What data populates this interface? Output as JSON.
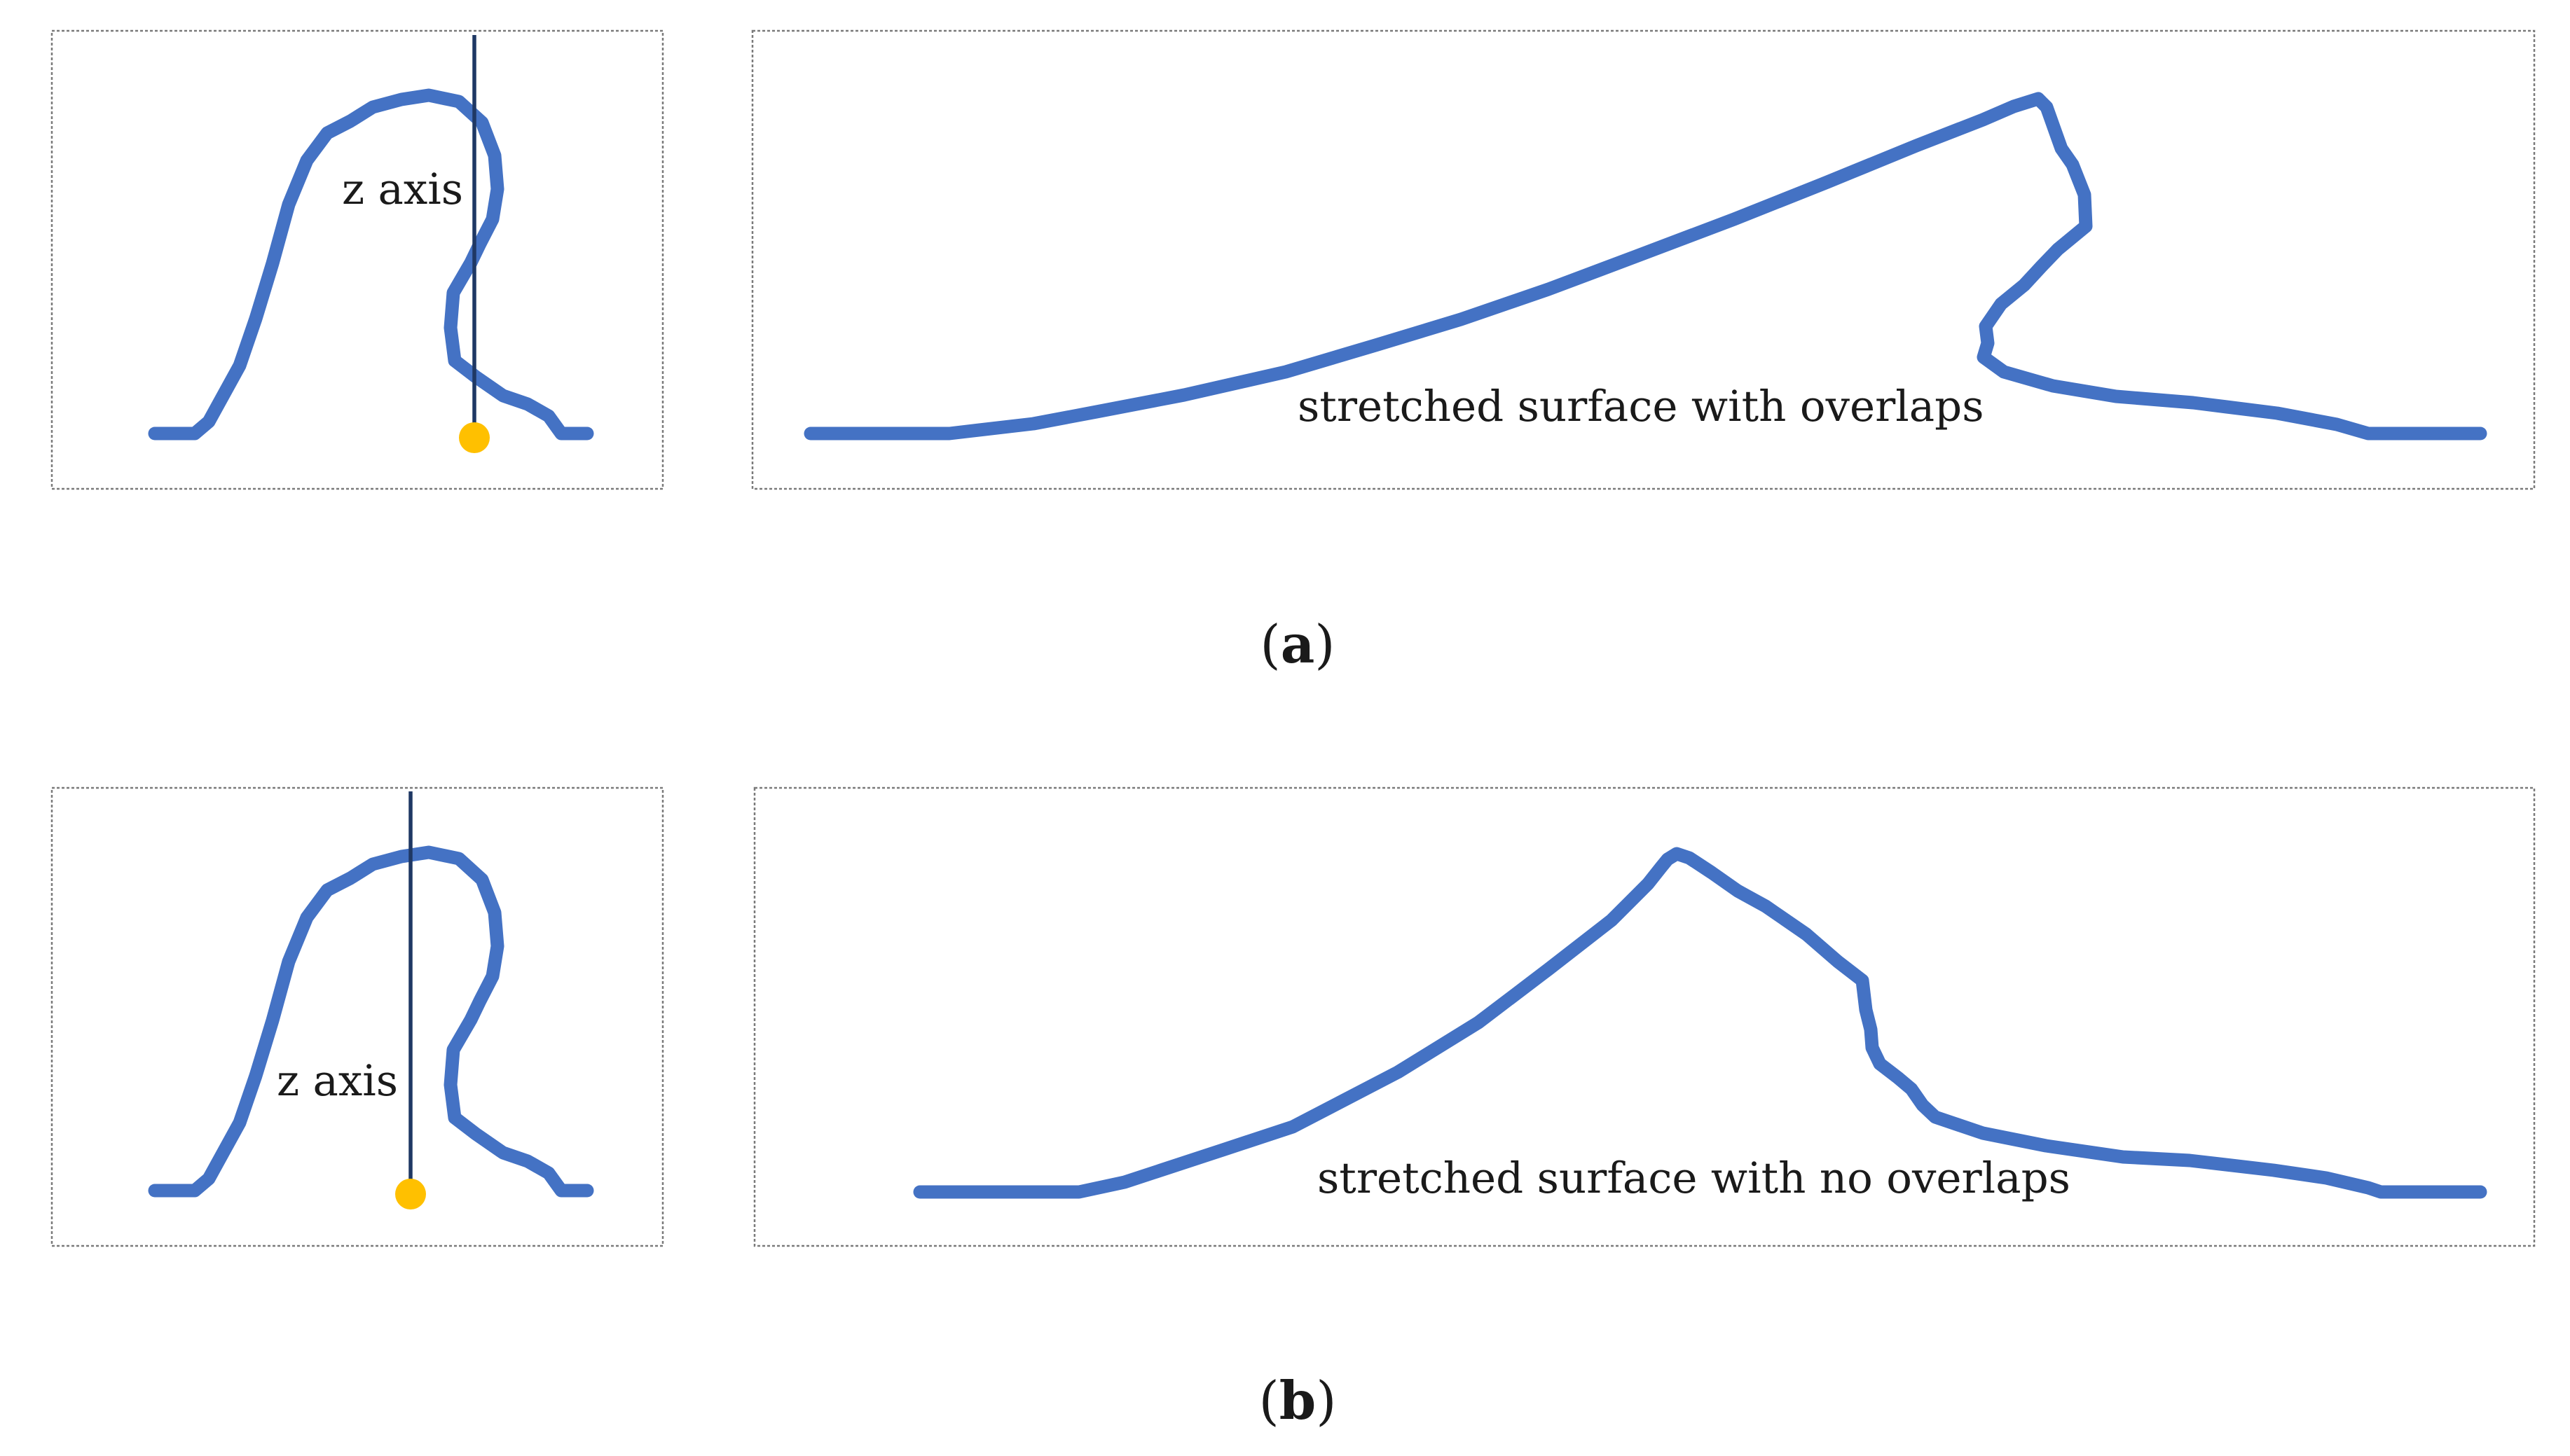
{
  "colors": {
    "curve": "#4472c4",
    "axis": "#1f3864",
    "origin_marker": "#ffc000",
    "box_border": "#7a7a7a"
  },
  "panels": [
    {
      "caption_letter": "a",
      "cross_section": {
        "axis_label": "z axis"
      },
      "stretched": {
        "label": "stretched surface with overlaps"
      }
    },
    {
      "caption_letter": "b",
      "cross_section": {
        "axis_label": "z axis"
      },
      "stretched": {
        "label": "stretched surface with no overlaps"
      }
    }
  ]
}
